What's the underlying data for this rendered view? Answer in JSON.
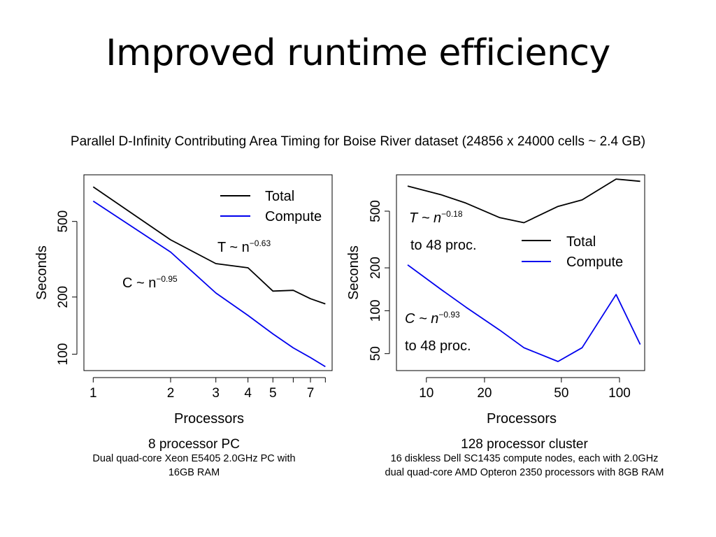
{
  "slide": {
    "title": "Improved runtime efficiency",
    "subtitle": "Parallel D-Infinity Contributing Area Timing for Boise River dataset (24856 x 24000 cells ~ 2.4 GB)"
  },
  "captions": {
    "left_title": "8 processor PC",
    "left_desc_1": "Dual quad-core Xeon E5405 2.0GHz PC with",
    "left_desc_2": "16GB RAM",
    "right_title": "128 processor cluster",
    "right_desc_1": "16 diskless Dell SC1435 compute nodes, each with 2.0GHz",
    "right_desc_2": "dual quad-core AMD Opteron 2350 processors with 8GB RAM"
  },
  "colors": {
    "total": "#000000",
    "compute": "#0000ee"
  },
  "chart_data": [
    {
      "type": "line",
      "xscale": "log",
      "yscale": "log",
      "xlabel": "Processors",
      "ylabel": "Seconds",
      "xlim": [
        0.92,
        8.5
      ],
      "ylim": [
        82,
        880
      ],
      "xticks": [
        1,
        2,
        3,
        4,
        5,
        6,
        7,
        8
      ],
      "xtick_labels": [
        "1",
        "2",
        "3",
        "4",
        "5",
        "",
        "7",
        ""
      ],
      "yticks": [
        100,
        200,
        500
      ],
      "ytick_labels": [
        "100",
        "200",
        "500"
      ],
      "legend": {
        "position": "top-right",
        "entries": [
          "Total",
          "Compute"
        ]
      },
      "series": [
        {
          "name": "Total",
          "x": [
            1,
            2,
            3,
            4,
            5,
            6,
            7,
            8
          ],
          "y": [
            760,
            400,
            300,
            285,
            215,
            217,
            196,
            184
          ]
        },
        {
          "name": "Compute",
          "x": [
            1,
            2,
            3,
            4,
            5,
            6,
            7,
            8
          ],
          "y": [
            640,
            345,
            210,
            160,
            128,
            108,
            96,
            86
          ]
        }
      ],
      "annotations": [
        {
          "base": "T ~ n",
          "exp": "−0.63"
        },
        {
          "base": "C ~ n",
          "exp": "−0.95"
        }
      ]
    },
    {
      "type": "line",
      "xscale": "log",
      "yscale": "log",
      "xlabel": "Processors",
      "ylabel": "Seconds",
      "xlim": [
        7,
        135
      ],
      "ylim": [
        38,
        900
      ],
      "xticks": [
        10,
        20,
        50,
        100
      ],
      "xtick_labels": [
        "10",
        "20",
        "50",
        "100"
      ],
      "yticks": [
        50,
        100,
        200,
        500
      ],
      "ytick_labels": [
        "50",
        "100",
        "200",
        "500"
      ],
      "legend": {
        "position": "top-right",
        "entries": [
          "Total",
          "Compute"
        ]
      },
      "series": [
        {
          "name": "Total",
          "x": [
            8,
            12,
            16,
            24,
            32,
            48,
            64,
            96,
            128
          ],
          "y": [
            750,
            650,
            570,
            450,
            415,
            540,
            600,
            840,
            810
          ]
        },
        {
          "name": "Compute",
          "x": [
            8,
            12,
            16,
            24,
            32,
            48,
            64,
            96,
            128
          ],
          "y": [
            210,
            140,
            106,
            73,
            55,
            44,
            55,
            130,
            58
          ]
        }
      ],
      "annotations": [
        {
          "base": "T ~ n",
          "exp": "−0.18",
          "line2": "to 48 proc."
        },
        {
          "base": "C ~ n",
          "exp": "−0.93",
          "line2": "to 48 proc."
        }
      ]
    }
  ]
}
